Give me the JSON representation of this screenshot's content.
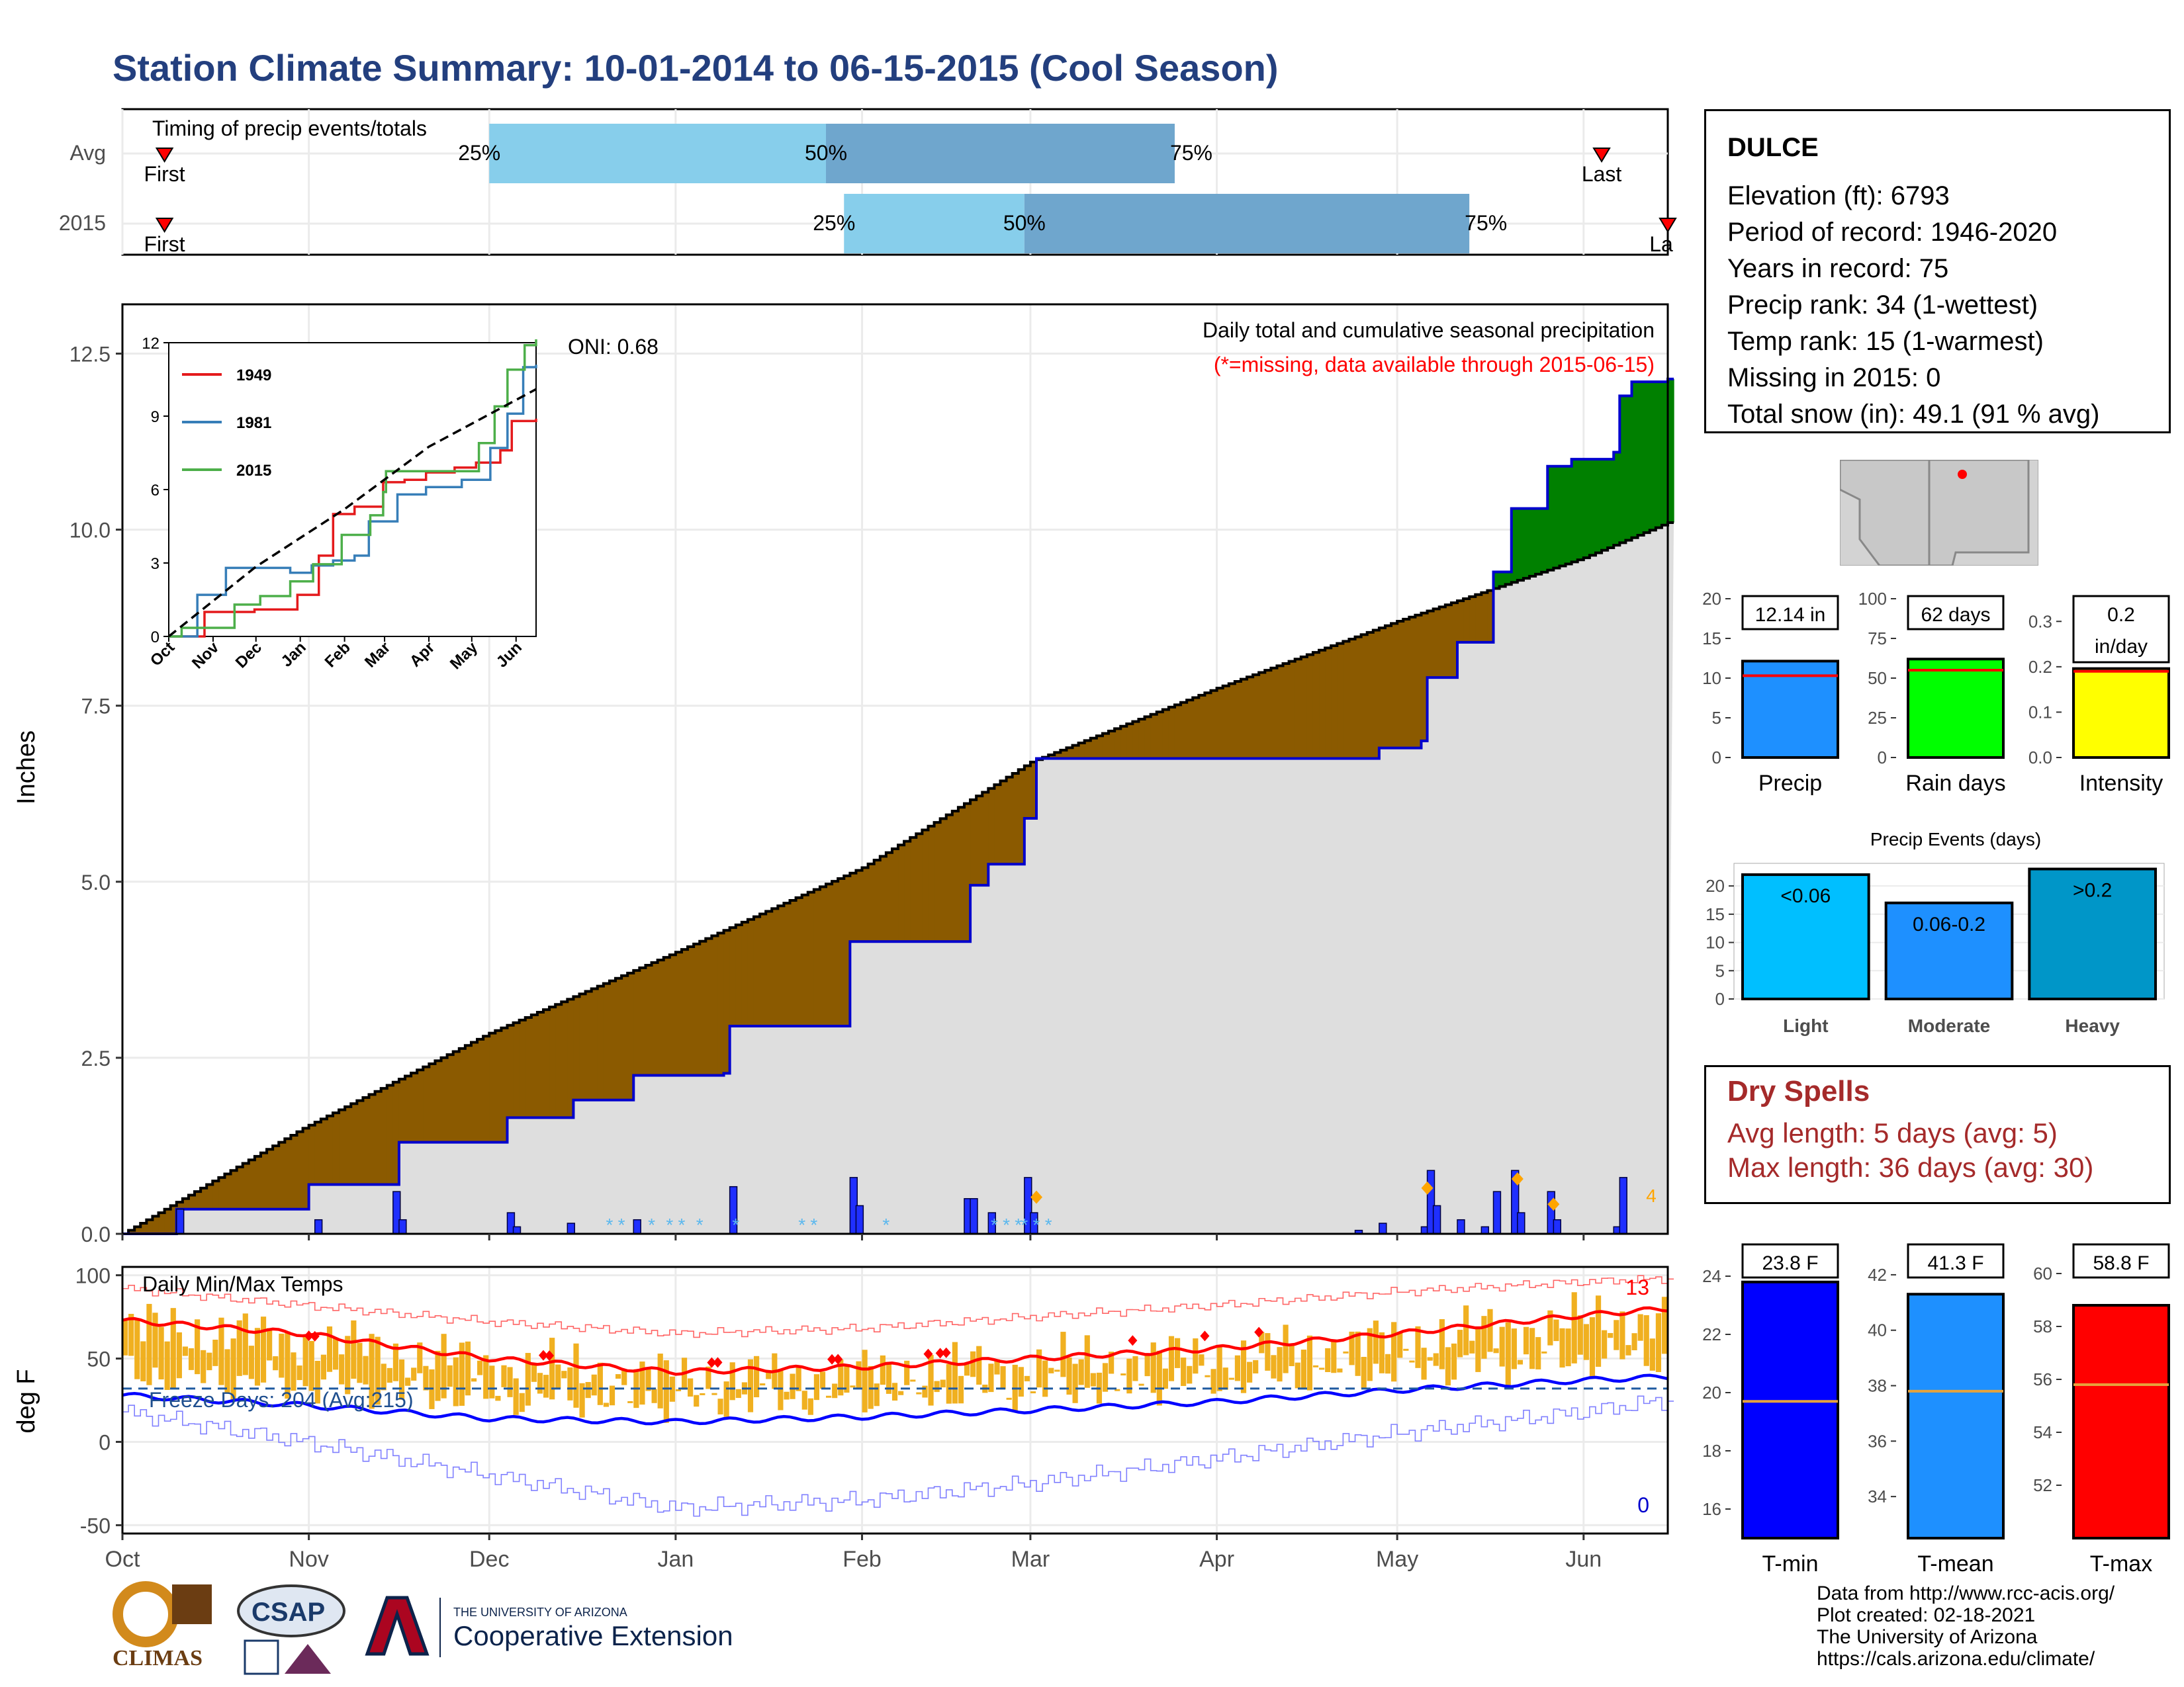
{
  "title": "Station Climate Summary: 10-01-2014 to 06-15-2015 (Cool Season)",
  "station": {
    "name": "DULCE",
    "lines": [
      "Elevation (ft): 6793",
      "Period of record: 1946-2020",
      "Years in record: 75",
      "Precip rank: 34 (1-wettest)",
      "Temp rank: 15 (1-warmest)",
      "Missing in 2015: 0",
      "Total snow (in): 49.1 (91 % avg)"
    ]
  },
  "dry_spells": {
    "title": "Dry Spells",
    "avg": "Avg length: 5 days (avg: 5)",
    "max": "Max length: 36 days (avg: 30)"
  },
  "credits": [
    "Data from http://www.rcc-acis.org/",
    "Plot created: 02-18-2021",
    "The University of Arizona",
    "https://cals.arizona.edu/climate/"
  ],
  "logos": {
    "climas": "CLIMAS",
    "csap": "CSAP",
    "ua_small": "THE UNIVERSITY OF ARIZONA",
    "ua_big": "Cooperative Extension"
  },
  "colors": {
    "title": "#233f7e",
    "above_avg_fill": "#8b5a00",
    "surplus_fill": "#008000",
    "normal_fill": "#dedede",
    "daily_bar": "#1f2fff",
    "temp_bar": "#f0b020",
    "light_bar": "#00bfff",
    "moderate_bar": "#1e90ff",
    "heavy_bar": "#0096c8"
  },
  "chart_data": [
    {
      "id": "timing",
      "type": "bar",
      "label": "Timing of precip events/totals",
      "rows": [
        {
          "name": "Avg",
          "first": "Oct 8",
          "q25": "Dec 1",
          "q50": "Jan 26",
          "q75": "Mar 25",
          "last": "Jun 4",
          "labels": [
            "First",
            "25%",
            "50%",
            "75%",
            "Last"
          ]
        },
        {
          "name": "2015",
          "first": "Oct 8",
          "q25": "Jan 29",
          "q50": "Feb 28",
          "q75": "May 13",
          "last": "Jun 15",
          "labels": [
            "First",
            "25%",
            "50%",
            "75%",
            "La"
          ]
        }
      ]
    },
    {
      "id": "cumulative",
      "type": "area",
      "title": "Daily total and cumulative seasonal precipitation",
      "subtitle": "(*=missing, data available through 2015-06-15)",
      "annotation": "ONI: 0.68",
      "ylabel": "Inches",
      "yticks": [
        "0.0",
        "2.5",
        "5.0",
        "7.5",
        "10.0",
        "12.5"
      ],
      "ylim": [
        0,
        13.2
      ],
      "average_cumulative": [
        [
          0,
          0
        ],
        [
          30,
          1.5
        ],
        [
          61,
          2.85
        ],
        [
          92,
          4.0
        ],
        [
          123,
          5.2
        ],
        [
          151,
          6.7
        ],
        [
          182,
          7.75
        ],
        [
          212,
          8.7
        ],
        [
          243,
          9.6
        ],
        [
          257,
          10.1
        ]
      ],
      "observed_2015_steps": [
        [
          0,
          0
        ],
        [
          9,
          0.35
        ],
        [
          31,
          0.7
        ],
        [
          45,
          0.7
        ],
        [
          46,
          1.3
        ],
        [
          63,
          1.3
        ],
        [
          64,
          1.65
        ],
        [
          74,
          1.65
        ],
        [
          75,
          1.9
        ],
        [
          84,
          1.9
        ],
        [
          85,
          2.25
        ],
        [
          100,
          2.28
        ],
        [
          101,
          2.95
        ],
        [
          120,
          2.95
        ],
        [
          121,
          4.15
        ],
        [
          139,
          4.15
        ],
        [
          141,
          4.95
        ],
        [
          144,
          5.25
        ],
        [
          150,
          5.9
        ],
        [
          152,
          6.75
        ],
        [
          205,
          6.75
        ],
        [
          209,
          6.9
        ],
        [
          216,
          7.0
        ],
        [
          217,
          7.9
        ],
        [
          222,
          8.4
        ],
        [
          227,
          8.4
        ],
        [
          228,
          9.4
        ],
        [
          231,
          10.3
        ],
        [
          237,
          10.9
        ],
        [
          241,
          11.0
        ],
        [
          248,
          11.1
        ],
        [
          249,
          11.9
        ],
        [
          251,
          12.1
        ],
        [
          257,
          12.14
        ]
      ],
      "daily_values": [
        [
          9,
          0.35
        ],
        [
          32,
          0.2
        ],
        [
          45,
          0.6
        ],
        [
          46,
          0.2
        ],
        [
          64,
          0.3
        ],
        [
          65,
          0.1
        ],
        [
          74,
          0.15
        ],
        [
          85,
          0.2
        ],
        [
          101,
          0.67
        ],
        [
          121,
          0.8
        ],
        [
          122,
          0.4
        ],
        [
          140,
          0.5
        ],
        [
          141,
          0.5
        ],
        [
          144,
          0.3
        ],
        [
          150,
          0.8
        ],
        [
          151,
          0.3
        ],
        [
          205,
          0.05
        ],
        [
          209,
          0.15
        ],
        [
          216,
          0.1
        ],
        [
          217,
          0.9
        ],
        [
          218,
          0.4
        ],
        [
          222,
          0.2
        ],
        [
          226,
          0.1
        ],
        [
          228,
          0.6
        ],
        [
          231,
          0.9
        ],
        [
          232,
          0.3
        ],
        [
          237,
          0.6
        ],
        [
          238,
          0.2
        ],
        [
          248,
          0.1
        ],
        [
          249,
          0.8
        ]
      ],
      "missing_marker": "*",
      "extra_label": "4",
      "xticks": [
        "Oct",
        "Nov",
        "Dec",
        "Jan",
        "Feb",
        "Mar",
        "Apr",
        "May",
        "Jun"
      ]
    },
    {
      "id": "inset",
      "type": "line",
      "yticks": [
        "0",
        "3",
        "6",
        "9",
        "12"
      ],
      "ylim": [
        0,
        12
      ],
      "xticks": [
        "Oct",
        "Nov",
        "Dec",
        "Jan",
        "Feb",
        "Mar",
        "Apr",
        "May",
        "Jun"
      ],
      "series": [
        {
          "name": "1949",
          "color": "#e41a1c",
          "values": [
            [
              0,
              0
            ],
            [
              25,
              1.0
            ],
            [
              60,
              1.1
            ],
            [
              90,
              1.7
            ],
            [
              105,
              3.3
            ],
            [
              115,
              5.0
            ],
            [
              130,
              5.3
            ],
            [
              150,
              6.3
            ],
            [
              165,
              6.4
            ],
            [
              180,
              6.7
            ],
            [
              200,
              6.9
            ],
            [
              215,
              7.1
            ],
            [
              232,
              7.6
            ],
            [
              240,
              8.8
            ],
            [
              257,
              8.9
            ]
          ]
        },
        {
          "name": "1981",
          "color": "#377eb8",
          "values": [
            [
              0,
              0
            ],
            [
              20,
              1.7
            ],
            [
              40,
              2.8
            ],
            [
              70,
              2.8
            ],
            [
              85,
              2.6
            ],
            [
              100,
              2.9
            ],
            [
              115,
              3.1
            ],
            [
              130,
              3.3
            ],
            [
              140,
              4.7
            ],
            [
              160,
              5.8
            ],
            [
              180,
              6.1
            ],
            [
              205,
              6.4
            ],
            [
              225,
              7.7
            ],
            [
              237,
              9.1
            ],
            [
              248,
              11.0
            ],
            [
              257,
              11.1
            ]
          ]
        },
        {
          "name": "2015",
          "color": "#4daf4a",
          "values": [
            [
              0,
              0
            ],
            [
              9,
              0.35
            ],
            [
              46,
              1.3
            ],
            [
              64,
              1.65
            ],
            [
              85,
              2.25
            ],
            [
              101,
              2.95
            ],
            [
              121,
              4.15
            ],
            [
              141,
              4.95
            ],
            [
              150,
              5.9
            ],
            [
              152,
              6.75
            ],
            [
              205,
              6.75
            ],
            [
              217,
              7.9
            ],
            [
              228,
              9.4
            ],
            [
              237,
              10.9
            ],
            [
              249,
              11.9
            ],
            [
              257,
              12.14
            ]
          ]
        },
        {
          "name": "",
          "color": "#000000",
          "dashed": true,
          "values": [
            [
              0,
              0
            ],
            [
              61,
              2.85
            ],
            [
              123,
              5.2
            ],
            [
              182,
              7.75
            ],
            [
              257,
              10.1
            ]
          ]
        }
      ]
    },
    {
      "id": "temps",
      "type": "bar",
      "title": "Daily Min/Max Temps",
      "ylabel": "deg F",
      "yticks": [
        "100",
        "50",
        "0",
        "-50"
      ],
      "ylim": [
        -55,
        105
      ],
      "freeze_label": "Freeze Days: 204 (Avg:215)",
      "freeze_line": 32,
      "record_high_count": "13",
      "record_low_count": "0",
      "avg_max_points": [
        [
          0,
          73
        ],
        [
          30,
          65
        ],
        [
          61,
          50
        ],
        [
          92,
          42
        ],
        [
          123,
          45
        ],
        [
          151,
          50
        ],
        [
          182,
          56
        ],
        [
          212,
          65
        ],
        [
          243,
          76
        ],
        [
          257,
          80
        ]
      ],
      "avg_min_points": [
        [
          0,
          28
        ],
        [
          30,
          22
        ],
        [
          61,
          14
        ],
        [
          92,
          12
        ],
        [
          123,
          15
        ],
        [
          151,
          19
        ],
        [
          182,
          24
        ],
        [
          212,
          31
        ],
        [
          243,
          37
        ],
        [
          257,
          39
        ]
      ],
      "record_max_points": [
        [
          0,
          92
        ],
        [
          30,
          82
        ],
        [
          61,
          72
        ],
        [
          92,
          65
        ],
        [
          123,
          68
        ],
        [
          151,
          75
        ],
        [
          182,
          82
        ],
        [
          212,
          90
        ],
        [
          243,
          96
        ],
        [
          257,
          98
        ]
      ],
      "record_min_points": [
        [
          0,
          18
        ],
        [
          30,
          0
        ],
        [
          61,
          -20
        ],
        [
          92,
          -40
        ],
        [
          123,
          -35
        ],
        [
          151,
          -25
        ],
        [
          182,
          -10
        ],
        [
          212,
          5
        ],
        [
          243,
          18
        ],
        [
          257,
          25
        ]
      ],
      "xticks": [
        "Oct",
        "Nov",
        "Dec",
        "Jan",
        "Feb",
        "Mar",
        "Apr",
        "May",
        "Jun"
      ]
    },
    {
      "id": "season_bars",
      "type": "bar",
      "panels": [
        {
          "category": "Precip",
          "value": 12.14,
          "avg": 10.3,
          "label": "12.14 in",
          "ymax": 20,
          "yticks": [
            "0",
            "5",
            "10",
            "15",
            "20"
          ],
          "color": "#1e90ff"
        },
        {
          "category": "Rain days",
          "value": 62,
          "avg": 55,
          "label": "62 days",
          "ymax": 100,
          "yticks": [
            "0",
            "25",
            "50",
            "75",
            "100"
          ],
          "color": "#00ff00"
        },
        {
          "category": "Intensity",
          "value": 0.196,
          "avg": 0.19,
          "label": "0.2 in/day",
          "ymax": 0.35,
          "yticks": [
            "0.0",
            "0.1",
            "0.2",
            "0.3"
          ],
          "color": "#ffff00"
        }
      ]
    },
    {
      "id": "precip_events",
      "type": "bar",
      "title": "Precip Events (days)",
      "categories": [
        "Light",
        "Moderate",
        "Heavy"
      ],
      "values": [
        22,
        17,
        23
      ],
      "bar_labels": [
        "<0.06",
        "0.06-0.2",
        ">0.2"
      ],
      "ylim": [
        0,
        24
      ],
      "yticks": [
        "0",
        "5",
        "10",
        "15",
        "20"
      ]
    },
    {
      "id": "temp_bars",
      "type": "bar",
      "panels": [
        {
          "category": "T-min",
          "value": 23.8,
          "avg": 19.7,
          "label": "23.8 F",
          "ylim": [
            15,
            25
          ],
          "yticks": [
            "16",
            "18",
            "20",
            "22",
            "24"
          ],
          "color": "#0000ff"
        },
        {
          "category": "T-mean",
          "value": 41.3,
          "avg": 37.8,
          "label": "41.3 F",
          "ylim": [
            32.5,
            43
          ],
          "yticks": [
            "34",
            "36",
            "38",
            "40",
            "42"
          ],
          "color": "#1e90ff"
        },
        {
          "category": "T-max",
          "value": 58.8,
          "avg": 55.8,
          "label": "58.8 F",
          "ylim": [
            50,
            61
          ],
          "yticks": [
            "52",
            "54",
            "56",
            "58",
            "60"
          ],
          "color": "#ff0000"
        }
      ]
    }
  ]
}
